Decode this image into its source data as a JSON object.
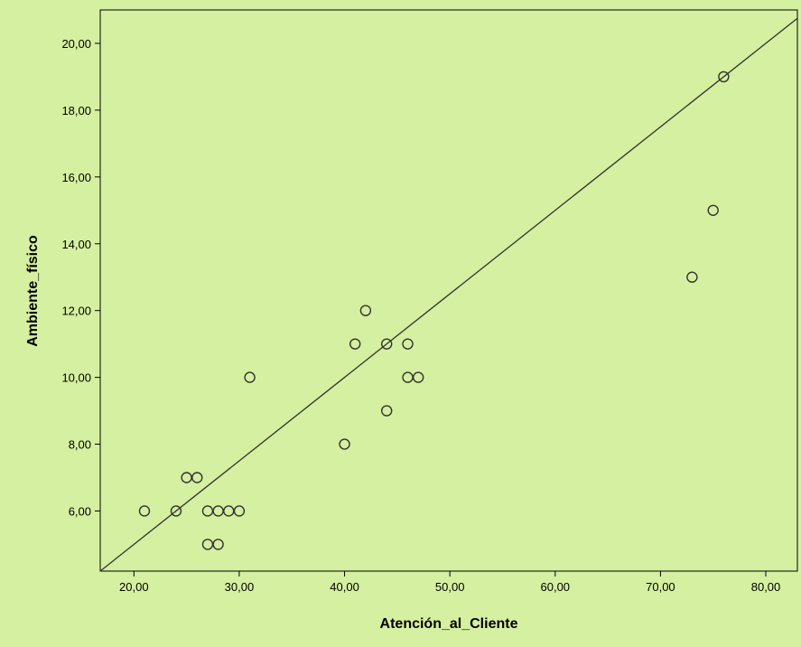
{
  "chart_data": {
    "type": "scatter",
    "xlabel": "Atención_al_Cliente",
    "ylabel": "Ambiente_físico",
    "xlim": [
      16.8,
      83.0
    ],
    "ylim": [
      4.2,
      21.0
    ],
    "x_ticks": [
      20,
      30,
      40,
      50,
      60,
      70,
      80
    ],
    "x_tick_labels": [
      "20,00",
      "30,00",
      "40,00",
      "50,00",
      "60,00",
      "70,00",
      "80,00"
    ],
    "y_ticks": [
      6,
      8,
      10,
      12,
      14,
      16,
      18,
      20
    ],
    "y_tick_labels": [
      "6,00",
      "8,00",
      "10,00",
      "12,00",
      "14,00",
      "16,00",
      "18,00",
      "20,00"
    ],
    "grid": false,
    "series": [
      {
        "points": [
          {
            "x": 21,
            "y": 6
          },
          {
            "x": 24,
            "y": 6
          },
          {
            "x": 25,
            "y": 7
          },
          {
            "x": 26,
            "y": 7
          },
          {
            "x": 27,
            "y": 6
          },
          {
            "x": 27,
            "y": 5
          },
          {
            "x": 28,
            "y": 6
          },
          {
            "x": 28,
            "y": 5
          },
          {
            "x": 29,
            "y": 6
          },
          {
            "x": 30,
            "y": 6
          },
          {
            "x": 31,
            "y": 10
          },
          {
            "x": 40,
            "y": 8
          },
          {
            "x": 41,
            "y": 11
          },
          {
            "x": 42,
            "y": 12
          },
          {
            "x": 44,
            "y": 11
          },
          {
            "x": 44,
            "y": 9
          },
          {
            "x": 46,
            "y": 11
          },
          {
            "x": 46,
            "y": 10
          },
          {
            "x": 47,
            "y": 10
          },
          {
            "x": 73,
            "y": 13
          },
          {
            "x": 75,
            "y": 15
          },
          {
            "x": 76,
            "y": 19
          }
        ]
      }
    ],
    "reference_line": {
      "slope": 0.25,
      "intercept": 0
    },
    "colors": {
      "page_background": "#d4f0a0",
      "plot_background": "#d4f0a0",
      "marker_stroke": "#333333",
      "line": "#333333",
      "axis": "#000000"
    }
  }
}
